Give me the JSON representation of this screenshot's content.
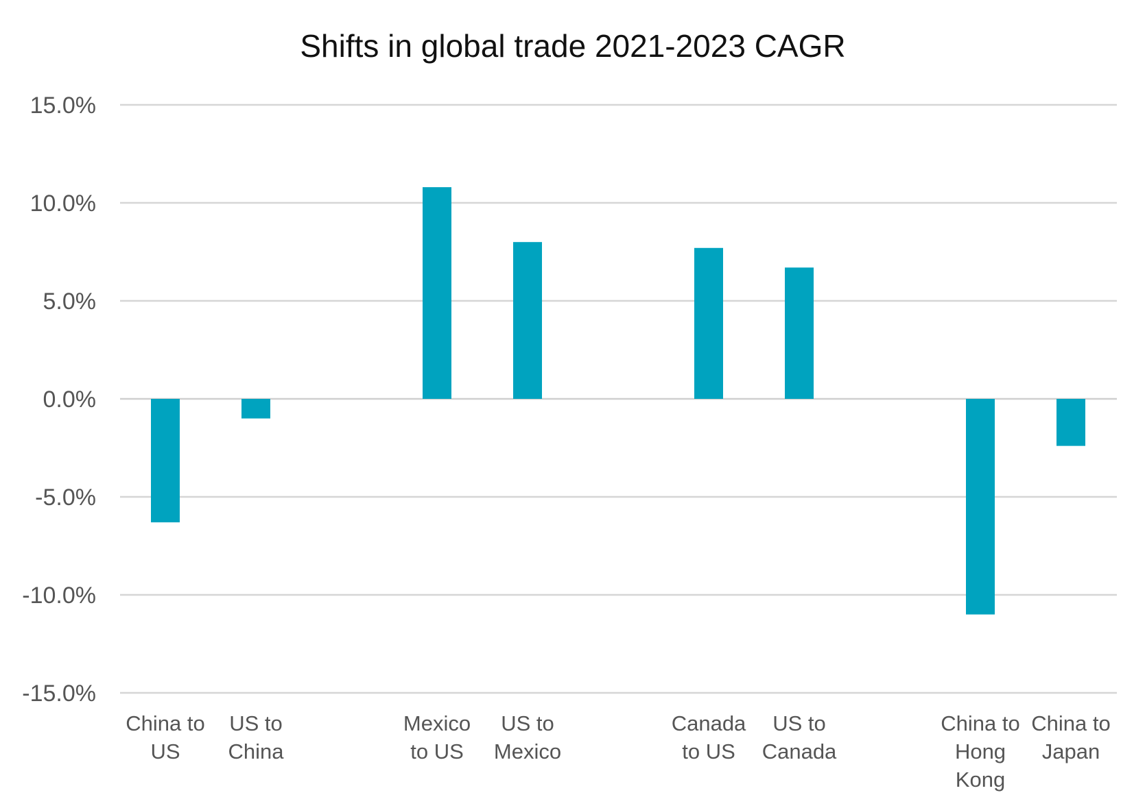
{
  "chart_data": {
    "type": "bar",
    "title": "Shifts in global trade 2021-2023 CAGR",
    "xlabel": "",
    "ylabel": "",
    "ylim": [
      -15,
      15
    ],
    "yticks": [
      15,
      10,
      5,
      0,
      -5,
      -10,
      -15
    ],
    "ytick_labels": [
      "15.0%",
      "10.0%",
      "5.0%",
      "0.0%",
      "-5.0%",
      "-10.0%",
      "-15.0%"
    ],
    "grid": true,
    "legend": "none",
    "bar_color": "#00A3BF",
    "categories": [
      [
        "China to",
        "US"
      ],
      [
        "US to",
        "China"
      ],
      [
        "Mexico",
        "to US"
      ],
      [
        "US to",
        "Mexico"
      ],
      [
        "Canada",
        "to US"
      ],
      [
        "US to",
        "Canada"
      ],
      [
        "China to",
        "Hong",
        "Kong"
      ],
      [
        "China to",
        "Japan"
      ]
    ],
    "values": [
      -6.3,
      -1.0,
      10.8,
      8.0,
      7.7,
      6.7,
      -11.0,
      -2.4
    ]
  }
}
